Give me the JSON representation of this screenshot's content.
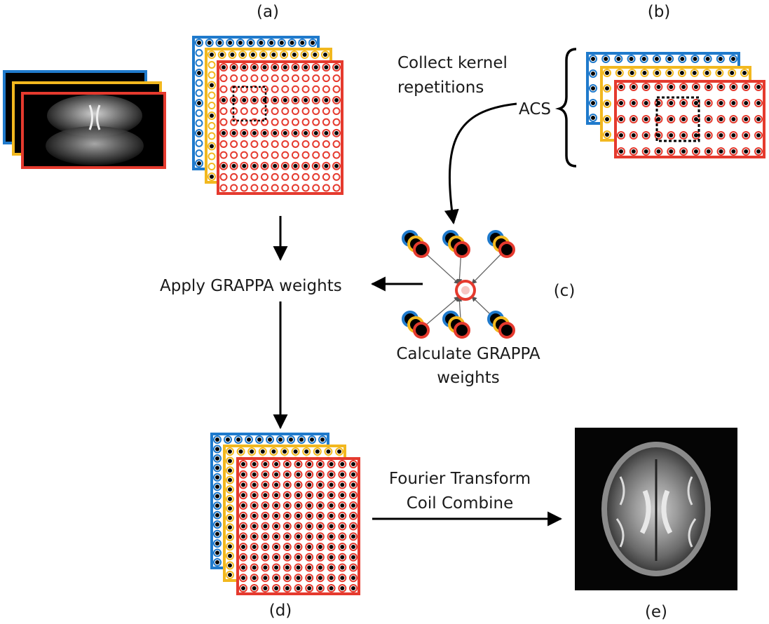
{
  "panels": {
    "a": "(a)",
    "b": "(b)",
    "c": "(c)",
    "d": "(d)",
    "e": "(e)"
  },
  "annotations": {
    "collect_line1": "Collect kernel",
    "collect_line2": "repetitions",
    "acs": "ACS",
    "apply": "Apply GRAPPA weights",
    "calc_line1": "Calculate GRAPPA",
    "calc_line2": "weights",
    "fourier_line1": "Fourier Transform",
    "fourier_line2": "Coil Combine"
  },
  "coil_colors": {
    "blue": "#1f7acc",
    "yellow": "#f2b81f",
    "red": "#e53a2e"
  }
}
